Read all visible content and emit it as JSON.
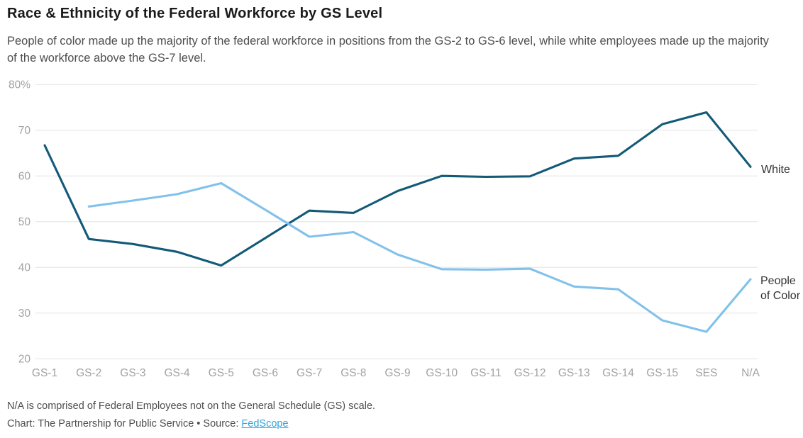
{
  "header": {
    "title": "Race & Ethnicity of the Federal Workforce by GS Level",
    "subtitle": "People of color made up the majority of the federal workforce in positions from the GS-2 to GS-6 level, while white employees made up the majority of the workforce above the GS-7 level."
  },
  "chart_data": {
    "type": "line",
    "title": "Race & Ethnicity of the Federal Workforce by GS Level",
    "categories": [
      "GS-1",
      "GS-2",
      "GS-3",
      "GS-4",
      "GS-5",
      "GS-6",
      "GS-7",
      "GS-8",
      "GS-9",
      "GS-10",
      "GS-11",
      "GS-12",
      "GS-13",
      "GS-14",
      "GS-15",
      "SES",
      "N/A"
    ],
    "series": [
      {
        "name": "White",
        "color": "#135978",
        "values": [
          66.7,
          46.2,
          45.1,
          43.4,
          40.4,
          46.4,
          52.4,
          51.9,
          56.7,
          60.0,
          59.8,
          59.9,
          63.8,
          64.4,
          71.3,
          73.9,
          62.0
        ]
      },
      {
        "name": "People of Color",
        "color": "#82c1ea",
        "values": [
          null,
          53.3,
          54.6,
          56.0,
          58.4,
          52.6,
          46.7,
          47.7,
          42.8,
          39.6,
          39.5,
          39.7,
          35.8,
          35.2,
          28.4,
          25.9,
          37.4
        ]
      }
    ],
    "ylim": [
      20,
      80
    ],
    "yticks": [
      {
        "value": 80,
        "label": "80%"
      },
      {
        "value": 70,
        "label": "70"
      },
      {
        "value": 60,
        "label": "60"
      },
      {
        "value": 50,
        "label": "50"
      },
      {
        "value": 40,
        "label": "40"
      },
      {
        "value": 30,
        "label": "30"
      },
      {
        "value": 20,
        "label": "20"
      }
    ],
    "xlabel": "",
    "ylabel": "",
    "grid": "horizontal",
    "legend_position": "right-edge-labels"
  },
  "footer": {
    "note": "N/A is comprised of Federal Employees not on the General Schedule (GS) scale.",
    "credit": "Chart: The Partnership for Public Service • Source: ",
    "source_link": "FedScope"
  },
  "colors": {
    "grid": "#e4e4e4",
    "axis_label": "#a2a2a2",
    "series_label": "#333333",
    "link": "#2fa3dc"
  }
}
